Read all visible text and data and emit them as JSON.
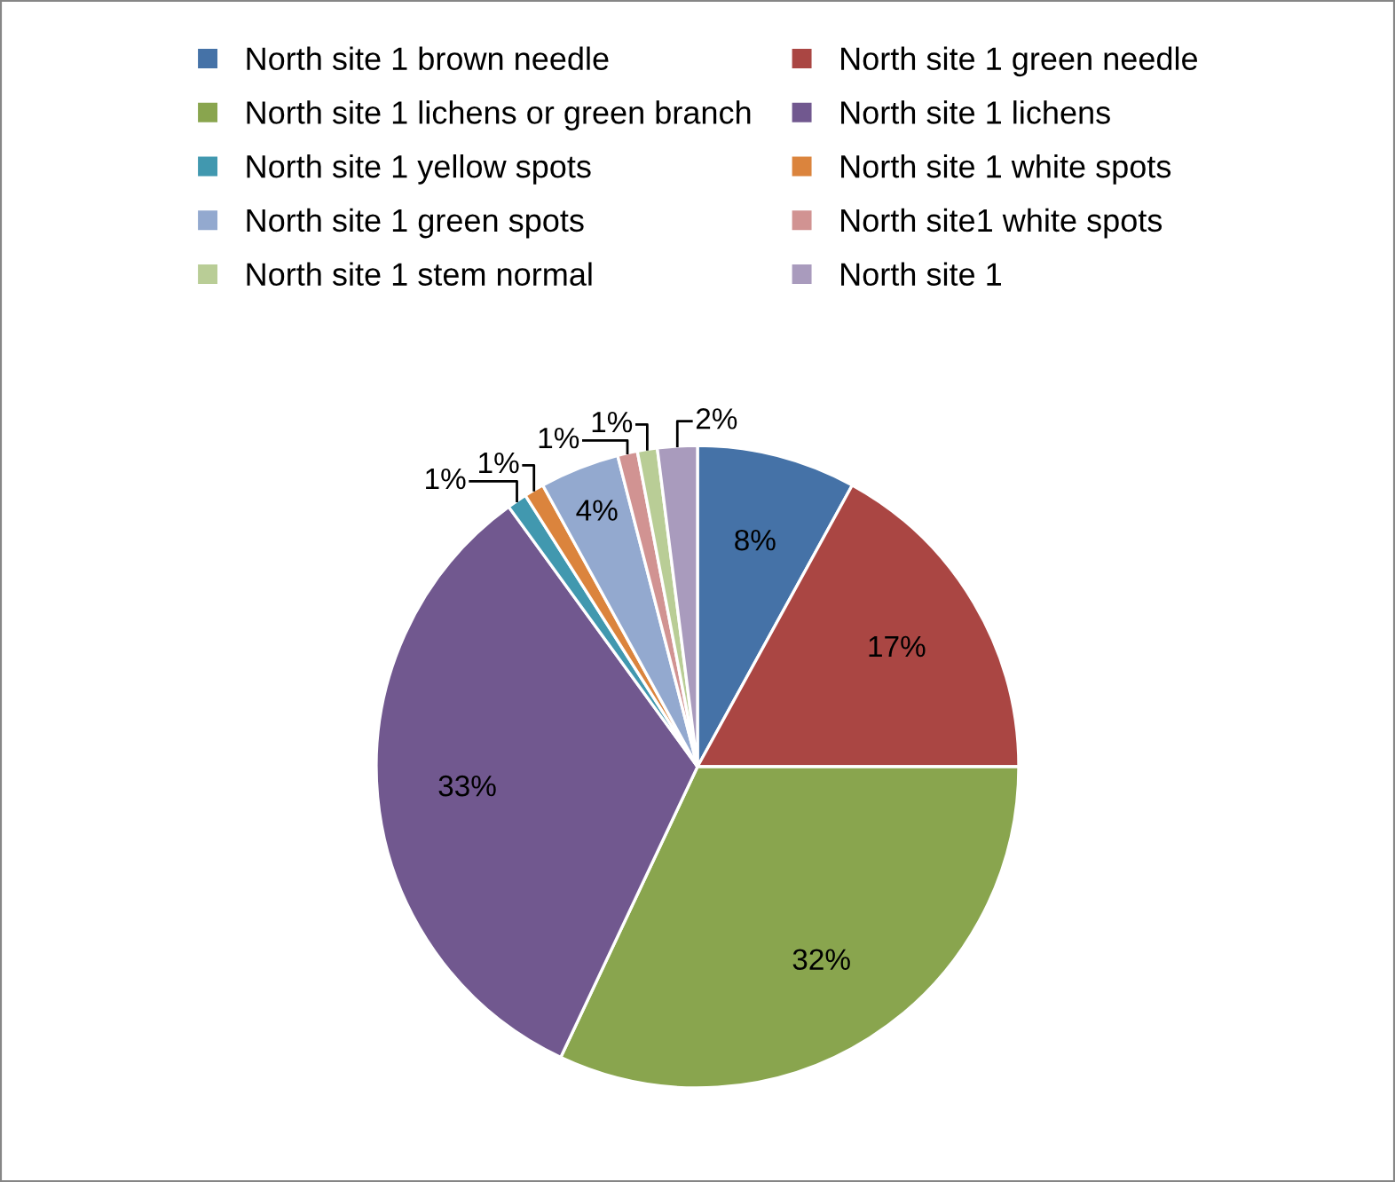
{
  "chart_data": {
    "type": "pie",
    "categories": [
      "North site 1 brown needle",
      "North site 1 green needle",
      "North site 1 lichens or green branch",
      "North site 1 lichens",
      "North site 1 yellow spots",
      "North site 1 white spots",
      "North site 1 green spots",
      "North site1 white spots",
      "North site 1 stem normal",
      "North site 1"
    ],
    "values": [
      8,
      17,
      32,
      33,
      1,
      1,
      4,
      1,
      1,
      2
    ],
    "colors": [
      "#4572a7",
      "#aa4643",
      "#89a54e",
      "#71588f",
      "#4198af",
      "#db843d",
      "#93a9cf",
      "#d19392",
      "#b9cd96",
      "#a99bbd"
    ],
    "value_labels": [
      "8%",
      "17%",
      "32%",
      "33%",
      "1%",
      "1%",
      "4%",
      "1%",
      "1%",
      "2%"
    ],
    "legend": "top"
  }
}
